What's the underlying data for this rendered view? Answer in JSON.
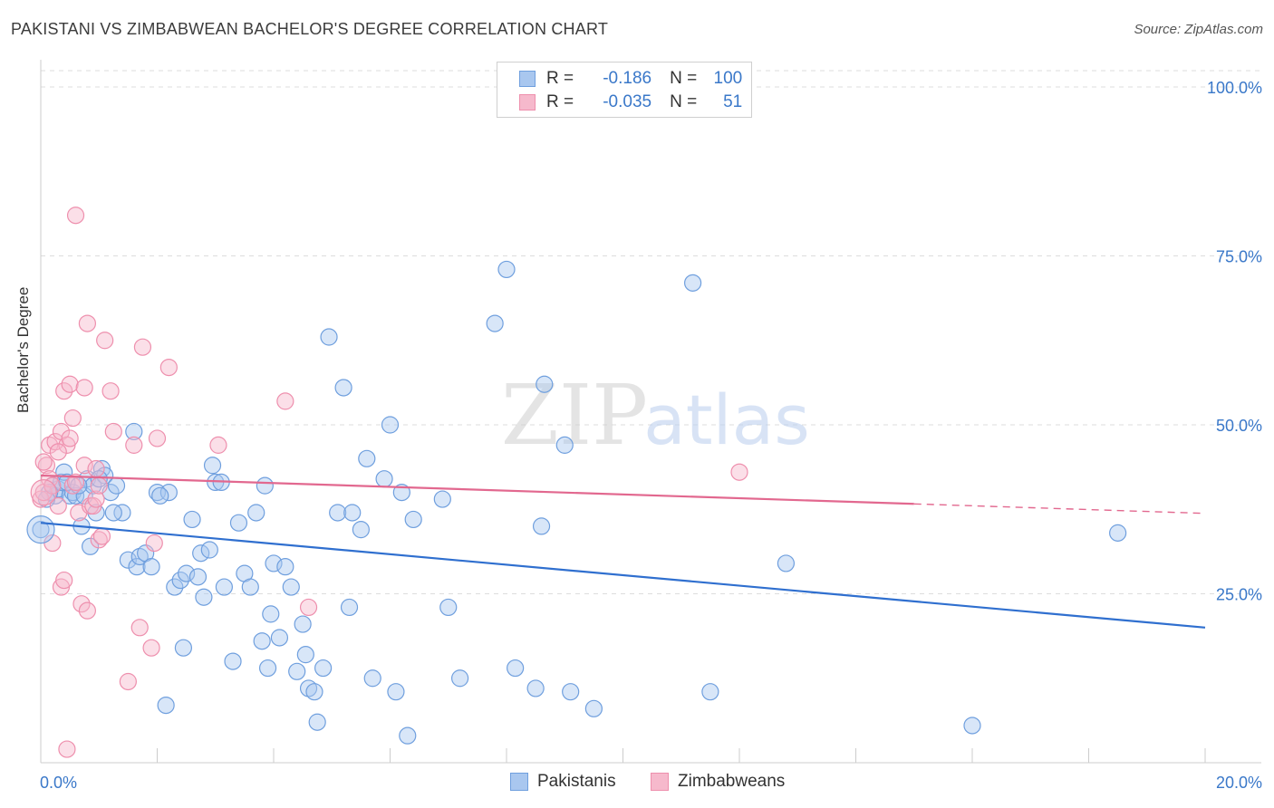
{
  "header": {
    "title": "PAKISTANI VS ZIMBABWEAN BACHELOR'S DEGREE CORRELATION CHART",
    "source": "Source: ZipAtlas.com"
  },
  "watermark": {
    "zip": "ZIP",
    "atlas": "atlas"
  },
  "legend": {
    "r_label": "R =",
    "n_label": "N =",
    "rows": [
      {
        "series": "Pakistanis",
        "r": "-0.186",
        "n": "100"
      },
      {
        "series": "Zimbabweans",
        "r": "-0.035",
        "n": "51"
      }
    ]
  },
  "colors": {
    "blue_fill": "#a9c7ef",
    "blue_stroke": "#6f9fde",
    "blue_line": "#2f6fcf",
    "pink_fill": "#f6b9cc",
    "pink_stroke": "#ee8fad",
    "pink_line": "#e2688f",
    "axis_text": "#3a78c9",
    "grid": "#dddddd"
  },
  "chart_data": {
    "type": "scatter",
    "title": "PAKISTANI VS ZIMBABWEAN BACHELOR'S DEGREE CORRELATION CHART",
    "xlabel": "",
    "ylabel": "Bachelor's Degree",
    "xlim": [
      0,
      20
    ],
    "ylim": [
      0,
      100
    ],
    "x_tick_labels": [
      "0.0%",
      "20.0%"
    ],
    "y_tick_labels": [
      "25.0%",
      "50.0%",
      "75.0%",
      "100.0%"
    ],
    "y_ticks": [
      25,
      50,
      75,
      100
    ],
    "legend_position": "top-center",
    "series": [
      {
        "name": "Pakistanis",
        "trend": {
          "x": [
            0,
            20
          ],
          "y": [
            35.5,
            20.0
          ],
          "dashed_from": null
        },
        "points": [
          [
            0.0,
            34.5
          ],
          [
            0.2,
            41.0
          ],
          [
            0.25,
            39.5
          ],
          [
            0.3,
            40.5
          ],
          [
            0.35,
            41.5
          ],
          [
            0.4,
            43.0
          ],
          [
            0.5,
            39.5
          ],
          [
            0.55,
            40.0
          ],
          [
            0.6,
            39.5
          ],
          [
            0.7,
            35.0
          ],
          [
            0.75,
            39.5
          ],
          [
            0.8,
            42.0
          ],
          [
            0.85,
            32.0
          ],
          [
            0.9,
            41.0
          ],
          [
            0.95,
            37.0
          ],
          [
            1.05,
            43.5
          ],
          [
            1.1,
            42.5
          ],
          [
            1.2,
            40.0
          ],
          [
            1.3,
            41.0
          ],
          [
            1.4,
            37.0
          ],
          [
            1.5,
            30.0
          ],
          [
            1.6,
            49.0
          ],
          [
            1.65,
            29.0
          ],
          [
            1.7,
            30.5
          ],
          [
            1.8,
            31.0
          ],
          [
            2.0,
            40.0
          ],
          [
            2.2,
            40.0
          ],
          [
            2.3,
            26.0
          ],
          [
            2.4,
            27.0
          ],
          [
            2.45,
            17.0
          ],
          [
            2.5,
            28.0
          ],
          [
            2.6,
            36.0
          ],
          [
            2.7,
            27.5
          ],
          [
            2.75,
            31.0
          ],
          [
            2.8,
            24.5
          ],
          [
            2.9,
            31.5
          ],
          [
            2.95,
            44.0
          ],
          [
            3.0,
            41.5
          ],
          [
            3.1,
            41.5
          ],
          [
            3.15,
            26.0
          ],
          [
            3.3,
            15.0
          ],
          [
            3.5,
            28.0
          ],
          [
            3.6,
            26.0
          ],
          [
            3.7,
            37.0
          ],
          [
            3.8,
            18.0
          ],
          [
            3.85,
            41.0
          ],
          [
            3.9,
            14.0
          ],
          [
            3.95,
            22.0
          ],
          [
            4.0,
            29.5
          ],
          [
            4.1,
            18.5
          ],
          [
            4.3,
            26.0
          ],
          [
            4.4,
            13.5
          ],
          [
            4.5,
            20.5
          ],
          [
            4.55,
            16.0
          ],
          [
            4.6,
            11.0
          ],
          [
            4.7,
            10.5
          ],
          [
            4.75,
            6.0
          ],
          [
            4.85,
            14.0
          ],
          [
            4.95,
            63.0
          ],
          [
            5.1,
            37.0
          ],
          [
            5.2,
            55.5
          ],
          [
            5.3,
            23.0
          ],
          [
            5.5,
            34.5
          ],
          [
            5.6,
            45.0
          ],
          [
            5.7,
            12.5
          ],
          [
            5.9,
            42.0
          ],
          [
            6.0,
            50.0
          ],
          [
            6.1,
            10.5
          ],
          [
            6.2,
            40.0
          ],
          [
            6.3,
            4.0
          ],
          [
            6.4,
            36.0
          ],
          [
            6.9,
            39.0
          ],
          [
            7.0,
            23.0
          ],
          [
            7.2,
            12.5
          ],
          [
            7.8,
            65.0
          ],
          [
            8.0,
            73.0
          ],
          [
            8.15,
            14.0
          ],
          [
            8.5,
            11.0
          ],
          [
            8.6,
            35.0
          ],
          [
            8.65,
            56.0
          ],
          [
            9.0,
            47.0
          ],
          [
            9.1,
            10.5
          ],
          [
            9.5,
            8.0
          ],
          [
            11.2,
            71.0
          ],
          [
            11.5,
            10.5
          ],
          [
            12.8,
            29.5
          ],
          [
            16.0,
            5.5
          ],
          [
            18.5,
            34.0
          ],
          [
            0.15,
            40.0
          ],
          [
            0.45,
            41.5
          ],
          [
            1.0,
            42.0
          ],
          [
            1.9,
            29.0
          ],
          [
            2.15,
            8.5
          ],
          [
            3.4,
            35.5
          ],
          [
            5.35,
            37.0
          ],
          [
            0.65,
            41.0
          ],
          [
            1.25,
            37.0
          ],
          [
            2.05,
            39.5
          ],
          [
            4.2,
            29.0
          ],
          [
            0.1,
            39.0
          ]
        ]
      },
      {
        "name": "Zimbabweans",
        "trend": {
          "x": [
            0,
            15
          ],
          "y": [
            42.5,
            38.3
          ],
          "dashed_to": [
            20,
            36.9
          ]
        },
        "points": [
          [
            0.0,
            39.0
          ],
          [
            0.05,
            40.0
          ],
          [
            0.1,
            44.0
          ],
          [
            0.15,
            47.0
          ],
          [
            0.15,
            42.0
          ],
          [
            0.2,
            32.5
          ],
          [
            0.2,
            41.0
          ],
          [
            0.25,
            47.5
          ],
          [
            0.3,
            38.0
          ],
          [
            0.35,
            26.0
          ],
          [
            0.35,
            49.0
          ],
          [
            0.4,
            27.0
          ],
          [
            0.4,
            55.0
          ],
          [
            0.45,
            47.0
          ],
          [
            0.5,
            48.0
          ],
          [
            0.5,
            56.0
          ],
          [
            0.55,
            51.0
          ],
          [
            0.55,
            41.0
          ],
          [
            0.6,
            81.0
          ],
          [
            0.6,
            41.5
          ],
          [
            0.65,
            37.0
          ],
          [
            0.7,
            23.5
          ],
          [
            0.75,
            55.5
          ],
          [
            0.75,
            44.0
          ],
          [
            0.8,
            65.0
          ],
          [
            0.8,
            22.5
          ],
          [
            0.85,
            38.0
          ],
          [
            0.9,
            38.0
          ],
          [
            0.95,
            39.0
          ],
          [
            0.95,
            43.5
          ],
          [
            1.0,
            33.0
          ],
          [
            1.05,
            33.5
          ],
          [
            1.1,
            62.5
          ],
          [
            1.2,
            55.0
          ],
          [
            1.25,
            49.0
          ],
          [
            1.5,
            12.0
          ],
          [
            1.6,
            47.0
          ],
          [
            1.7,
            20.0
          ],
          [
            1.75,
            61.5
          ],
          [
            1.9,
            17.0
          ],
          [
            1.95,
            32.5
          ],
          [
            2.0,
            48.0
          ],
          [
            2.2,
            58.5
          ],
          [
            3.05,
            47.0
          ],
          [
            4.2,
            53.5
          ],
          [
            4.6,
            23.0
          ],
          [
            12.0,
            43.0
          ],
          [
            0.3,
            46.0
          ],
          [
            0.45,
            2.0
          ],
          [
            1.0,
            41.0
          ],
          [
            0.05,
            44.5
          ]
        ]
      }
    ]
  },
  "bottom_legend": [
    "Pakistanis",
    "Zimbabweans"
  ]
}
